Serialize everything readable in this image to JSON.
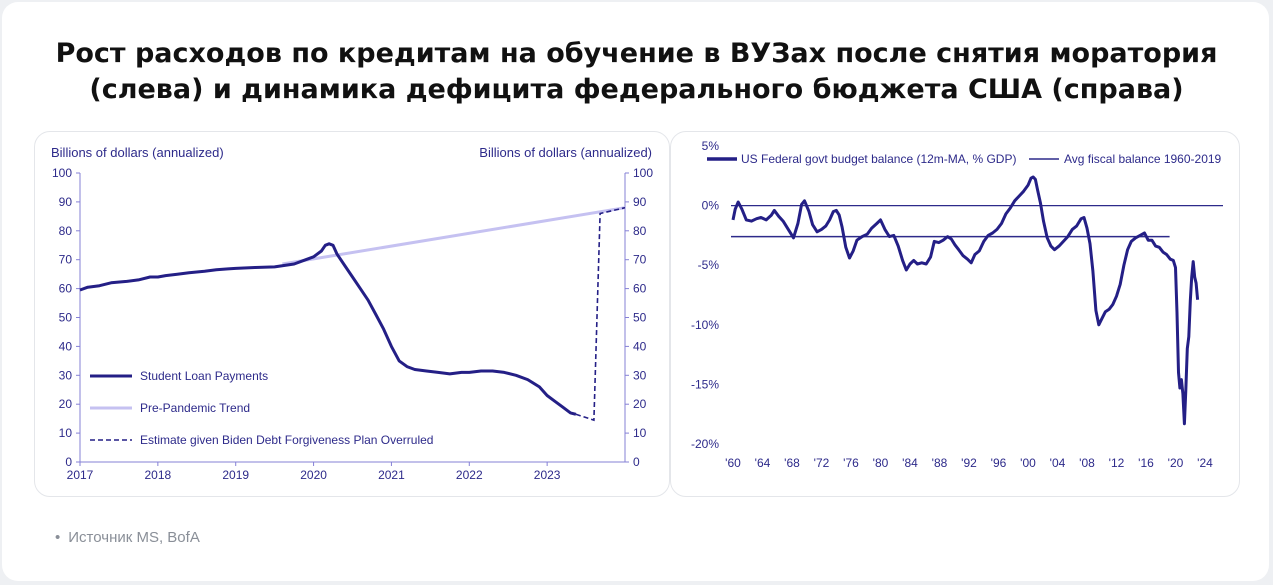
{
  "title_line1": "Рост расходов по кредитам на обучение в ВУЗах после снятия моратория",
  "title_line2": "(слева) и динамика дефицита федерального бюджета США (справа)",
  "source": "Источник MS, BofA",
  "colors": {
    "navy": "#241f86",
    "trend": "#c5c1f1",
    "axis_text": "#2d2a8a",
    "axis_line": "#8580d6"
  },
  "chart_data": [
    {
      "type": "line",
      "ylabel_left": "Billions of dollars (annualized)",
      "ylabel_right": "Billions of dollars (annualized)",
      "ylim": [
        0,
        100
      ],
      "yticks": [
        "0",
        "10",
        "20",
        "30",
        "40",
        "50",
        "60",
        "70",
        "80",
        "90",
        "100"
      ],
      "xlim": [
        2017,
        2024.0
      ],
      "xticks": [
        {
          "x": 2017,
          "label": "2017"
        },
        {
          "x": 2018,
          "label": "2018"
        },
        {
          "x": 2019,
          "label": "2019"
        },
        {
          "x": 2020,
          "label": "2020"
        },
        {
          "x": 2021,
          "label": "2021"
        },
        {
          "x": 2022,
          "label": "2022"
        },
        {
          "x": 2023,
          "label": "2023"
        }
      ],
      "legend_placement": "bottom-left",
      "series": [
        {
          "name": "Student Loan Payments",
          "style": "solid",
          "points": [
            [
              2017.0,
              59.5
            ],
            [
              2017.1,
              60.5
            ],
            [
              2017.25,
              61
            ],
            [
              2017.4,
              62
            ],
            [
              2017.6,
              62.5
            ],
            [
              2017.75,
              63
            ],
            [
              2017.9,
              64
            ],
            [
              2018.0,
              64
            ],
            [
              2018.1,
              64.5
            ],
            [
              2018.25,
              65
            ],
            [
              2018.4,
              65.5
            ],
            [
              2018.6,
              66
            ],
            [
              2018.75,
              66.5
            ],
            [
              2018.9,
              66.8
            ],
            [
              2019.0,
              67
            ],
            [
              2019.25,
              67.3
            ],
            [
              2019.5,
              67.5
            ],
            [
              2019.75,
              68.5
            ],
            [
              2019.9,
              70
            ],
            [
              2020.0,
              71
            ],
            [
              2020.1,
              73
            ],
            [
              2020.15,
              75
            ],
            [
              2020.2,
              75.5
            ],
            [
              2020.25,
              75
            ],
            [
              2020.3,
              72
            ],
            [
              2020.4,
              68
            ],
            [
              2020.5,
              64
            ],
            [
              2020.6,
              60
            ],
            [
              2020.7,
              56
            ],
            [
              2020.8,
              51
            ],
            [
              2020.9,
              46
            ],
            [
              2021.0,
              40
            ],
            [
              2021.1,
              35
            ],
            [
              2021.2,
              33
            ],
            [
              2021.3,
              32
            ],
            [
              2021.45,
              31.5
            ],
            [
              2021.6,
              31
            ],
            [
              2021.75,
              30.5
            ],
            [
              2021.9,
              31
            ],
            [
              2022.0,
              31
            ],
            [
              2022.15,
              31.5
            ],
            [
              2022.3,
              31.5
            ],
            [
              2022.45,
              31
            ],
            [
              2022.6,
              30
            ],
            [
              2022.75,
              28.5
            ],
            [
              2022.9,
              26
            ],
            [
              2023.0,
              23
            ],
            [
              2023.1,
              21
            ],
            [
              2023.2,
              19
            ],
            [
              2023.3,
              17
            ],
            [
              2023.37,
              16.5
            ]
          ]
        },
        {
          "name": "Pre-Pandemic Trend",
          "style": "solid-light",
          "points": [
            [
              2019.6,
              68.5
            ],
            [
              2024.0,
              88
            ]
          ]
        },
        {
          "name": "Estimate given Biden Debt Forgiveness Plan Overruled",
          "style": "dashed",
          "points": [
            [
              2023.37,
              16.5
            ],
            [
              2023.6,
              14.5
            ],
            [
              2023.68,
              86
            ],
            [
              2024.0,
              88
            ]
          ]
        }
      ]
    },
    {
      "type": "line",
      "ylim": [
        -20,
        5
      ],
      "yticks": [
        {
          "y": 5,
          "label": "5%"
        },
        {
          "y": 0,
          "label": "0%"
        },
        {
          "y": -5,
          "label": "-5%"
        },
        {
          "y": -10,
          "label": "-10%"
        },
        {
          "y": -15,
          "label": "-15%"
        },
        {
          "y": -20,
          "label": "-20%"
        }
      ],
      "xlim": [
        1960,
        2024
      ],
      "xticks": [
        "'60",
        "'64",
        "'68",
        "'72",
        "'76",
        "'80",
        "'84",
        "'88",
        "'92",
        "'96",
        "'00",
        "'04",
        "'08",
        "'12",
        "'16",
        "'20",
        "'24"
      ],
      "legend_placement": "top",
      "reference_lines": [
        {
          "y": 0
        },
        {
          "name": "Avg fiscal balance 1960-2019",
          "y": -2.6
        }
      ],
      "series": [
        {
          "name": "US Federal govt budget balance (12m-MA, % GDP)",
          "points": [
            [
              1960,
              -1.2
            ],
            [
              1960.3,
              -0.3
            ],
            [
              1960.7,
              0.3
            ],
            [
              1961.2,
              -0.3
            ],
            [
              1961.8,
              -1.2
            ],
            [
              1962.5,
              -1.3
            ],
            [
              1963.2,
              -1.1
            ],
            [
              1963.8,
              -1.0
            ],
            [
              1964.5,
              -1.2
            ],
            [
              1965.2,
              -0.8
            ],
            [
              1965.6,
              -0.4
            ],
            [
              1966.2,
              -0.9
            ],
            [
              1966.8,
              -1.3
            ],
            [
              1967.5,
              -2.0
            ],
            [
              1968.2,
              -2.7
            ],
            [
              1968.8,
              -1.5
            ],
            [
              1969.3,
              0.1
            ],
            [
              1969.7,
              0.4
            ],
            [
              1970.3,
              -0.5
            ],
            [
              1970.8,
              -1.6
            ],
            [
              1971.4,
              -2.2
            ],
            [
              1972.0,
              -2.0
            ],
            [
              1972.6,
              -1.7
            ],
            [
              1973.1,
              -1.2
            ],
            [
              1973.6,
              -0.5
            ],
            [
              1974.0,
              -0.4
            ],
            [
              1974.4,
              -0.8
            ],
            [
              1974.8,
              -1.8
            ],
            [
              1975.3,
              -3.5
            ],
            [
              1975.8,
              -4.4
            ],
            [
              1976.3,
              -3.8
            ],
            [
              1976.8,
              -2.9
            ],
            [
              1977.5,
              -2.6
            ],
            [
              1978.2,
              -2.4
            ],
            [
              1978.8,
              -1.9
            ],
            [
              1979.5,
              -1.5
            ],
            [
              1980.0,
              -1.2
            ],
            [
              1980.6,
              -2.0
            ],
            [
              1981.2,
              -2.6
            ],
            [
              1981.8,
              -2.5
            ],
            [
              1982.4,
              -3.4
            ],
            [
              1983.0,
              -4.6
            ],
            [
              1983.5,
              -5.4
            ],
            [
              1984.0,
              -4.9
            ],
            [
              1984.5,
              -4.6
            ],
            [
              1985.0,
              -4.9
            ],
            [
              1985.6,
              -4.8
            ],
            [
              1986.2,
              -4.9
            ],
            [
              1986.8,
              -4.3
            ],
            [
              1987.3,
              -3.0
            ],
            [
              1987.9,
              -3.1
            ],
            [
              1988.5,
              -2.9
            ],
            [
              1989.1,
              -2.6
            ],
            [
              1989.6,
              -2.8
            ],
            [
              1990.1,
              -3.3
            ],
            [
              1990.6,
              -3.7
            ],
            [
              1991.2,
              -4.2
            ],
            [
              1991.8,
              -4.5
            ],
            [
              1992.3,
              -4.8
            ],
            [
              1992.8,
              -4.1
            ],
            [
              1993.4,
              -3.8
            ],
            [
              1994.0,
              -3.0
            ],
            [
              1994.6,
              -2.5
            ],
            [
              1995.2,
              -2.3
            ],
            [
              1995.8,
              -2.0
            ],
            [
              1996.4,
              -1.5
            ],
            [
              1997.0,
              -0.7
            ],
            [
              1997.6,
              -0.2
            ],
            [
              1998.2,
              0.4
            ],
            [
              1998.8,
              0.8
            ],
            [
              1999.4,
              1.2
            ],
            [
              2000.0,
              1.7
            ],
            [
              2000.4,
              2.3
            ],
            [
              2000.7,
              2.4
            ],
            [
              2001.0,
              2.2
            ],
            [
              2001.3,
              1.3
            ],
            [
              2001.7,
              0.2
            ],
            [
              2002.1,
              -1.3
            ],
            [
              2002.6,
              -2.7
            ],
            [
              2003.1,
              -3.4
            ],
            [
              2003.6,
              -3.7
            ],
            [
              2004.2,
              -3.4
            ],
            [
              2004.8,
              -3.0
            ],
            [
              2005.4,
              -2.6
            ],
            [
              2006.0,
              -2.0
            ],
            [
              2006.6,
              -1.7
            ],
            [
              2007.2,
              -1.1
            ],
            [
              2007.6,
              -1.0
            ],
            [
              2008.0,
              -1.9
            ],
            [
              2008.4,
              -3.2
            ],
            [
              2008.8,
              -5.5
            ],
            [
              2009.2,
              -8.8
            ],
            [
              2009.6,
              -10.0
            ],
            [
              2010.0,
              -9.5
            ],
            [
              2010.5,
              -8.9
            ],
            [
              2011.0,
              -8.7
            ],
            [
              2011.5,
              -8.3
            ],
            [
              2012.0,
              -7.6
            ],
            [
              2012.5,
              -6.6
            ],
            [
              2013.0,
              -5.0
            ],
            [
              2013.5,
              -3.7
            ],
            [
              2014.0,
              -3.0
            ],
            [
              2014.6,
              -2.7
            ],
            [
              2015.2,
              -2.5
            ],
            [
              2015.8,
              -2.3
            ],
            [
              2016.3,
              -2.9
            ],
            [
              2016.8,
              -2.9
            ],
            [
              2017.3,
              -3.4
            ],
            [
              2017.8,
              -3.5
            ],
            [
              2018.3,
              -3.9
            ],
            [
              2018.8,
              -4.1
            ],
            [
              2019.3,
              -4.5
            ],
            [
              2019.7,
              -4.6
            ],
            [
              2020.0,
              -5.2
            ],
            [
              2020.2,
              -9
            ],
            [
              2020.4,
              -14
            ],
            [
              2020.6,
              -15.3
            ],
            [
              2020.8,
              -14.6
            ],
            [
              2021.0,
              -15.8
            ],
            [
              2021.2,
              -18.3
            ],
            [
              2021.4,
              -15.5
            ],
            [
              2021.6,
              -12
            ],
            [
              2021.8,
              -11
            ],
            [
              2022.0,
              -8
            ],
            [
              2022.2,
              -6
            ],
            [
              2022.4,
              -4.7
            ],
            [
              2022.6,
              -6.0
            ],
            [
              2022.8,
              -6.5
            ],
            [
              2023.0,
              -7.9
            ]
          ]
        }
      ]
    }
  ]
}
